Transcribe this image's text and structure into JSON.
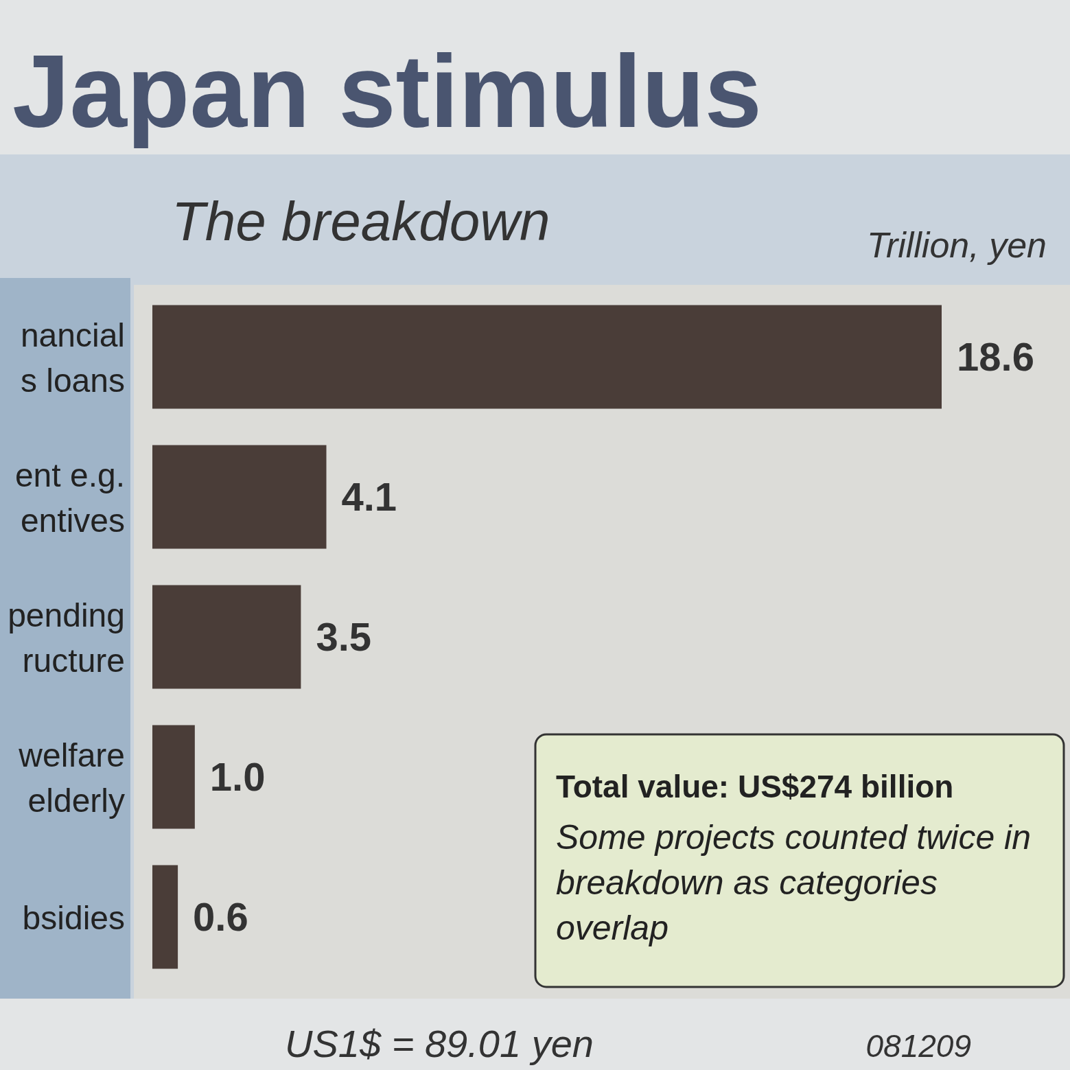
{
  "chart_data": {
    "type": "bar",
    "orientation": "horizontal",
    "title": "Japan stimulus",
    "subtitle": "The breakdown",
    "xlabel": "Trillion, yen",
    "categories": [
      "nancial\ns loans",
      "ent e.g.\nentives",
      "pending\nructure",
      "welfare\nelderly",
      "bsidies"
    ],
    "values": [
      18.6,
      4.1,
      3.5,
      1.0,
      0.6
    ],
    "value_labels": [
      "18.6",
      "4.1",
      "3.5",
      "1.0",
      "0.6"
    ],
    "color": "#4a3d38",
    "annotations": [
      "Total value: US$274 billion",
      "Some projects counted twice in breakdown as categories overlap",
      "US1$ = 89.01 yen",
      "081209"
    ]
  }
}
